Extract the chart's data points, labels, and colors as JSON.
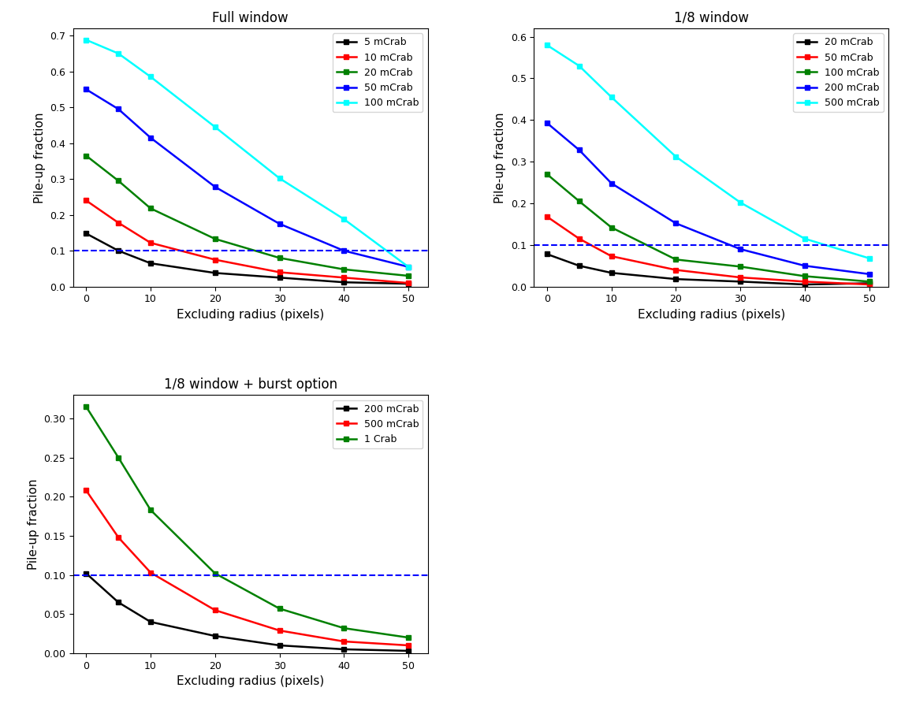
{
  "x": [
    0,
    5,
    10,
    20,
    30,
    40,
    50
  ],
  "xticks": [
    0,
    10,
    20,
    30,
    40,
    50
  ],
  "panel1": {
    "title": "Full window",
    "ylabel": "Pile-up fraction",
    "xlabel": "Excluding radius (pixels)",
    "ylim": [
      0,
      0.72
    ],
    "yticks": [
      0.0,
      0.1,
      0.2,
      0.3,
      0.4,
      0.5,
      0.6,
      0.7
    ],
    "series": [
      {
        "label": "5 mCrab",
        "color": "black",
        "data": [
          0.148,
          0.1,
          0.065,
          0.038,
          0.025,
          0.012,
          0.008
        ]
      },
      {
        "label": "10 mCrab",
        "color": "red",
        "data": [
          0.24,
          0.178,
          0.122,
          0.075,
          0.04,
          0.025,
          0.01
        ]
      },
      {
        "label": "20 mCrab",
        "color": "green",
        "data": [
          0.365,
          0.295,
          0.218,
          0.133,
          0.08,
          0.048,
          0.03
        ]
      },
      {
        "label": "50 mCrab",
        "color": "blue",
        "data": [
          0.55,
          0.495,
          0.415,
          0.278,
          0.175,
          0.1,
          0.055
        ]
      },
      {
        "label": "100 mCrab",
        "color": "cyan",
        "data": [
          0.688,
          0.65,
          0.585,
          0.445,
          0.302,
          0.188,
          0.055
        ]
      }
    ]
  },
  "panel2": {
    "title": "1/8 window",
    "ylabel": "Pile-up fraction",
    "xlabel": "Excluding radius (pixels)",
    "ylim": [
      0,
      0.62
    ],
    "yticks": [
      0.0,
      0.1,
      0.2,
      0.3,
      0.4,
      0.5,
      0.6
    ],
    "series": [
      {
        "label": "20 mCrab",
        "color": "black",
        "data": [
          0.078,
          0.05,
          0.033,
          0.018,
          0.012,
          0.005,
          0.008
        ]
      },
      {
        "label": "50 mCrab",
        "color": "red",
        "data": [
          0.168,
          0.115,
          0.073,
          0.04,
          0.022,
          0.012,
          0.005
        ]
      },
      {
        "label": "100 mCrab",
        "color": "green",
        "data": [
          0.27,
          0.205,
          0.142,
          0.065,
          0.048,
          0.025,
          0.012
        ]
      },
      {
        "label": "200 mCrab",
        "color": "blue",
        "data": [
          0.393,
          0.328,
          0.248,
          0.152,
          0.09,
          0.05,
          0.03
        ]
      },
      {
        "label": "500 mCrab",
        "color": "cyan",
        "data": [
          0.58,
          0.53,
          0.455,
          0.312,
          0.202,
          0.115,
          0.068
        ]
      }
    ]
  },
  "panel3": {
    "title": "1/8 window + burst option",
    "ylabel": "Pile-up fraction",
    "xlabel": "Excluding radius (pixels)",
    "ylim": [
      0,
      0.33
    ],
    "yticks": [
      0.0,
      0.05,
      0.1,
      0.15,
      0.2,
      0.25,
      0.3
    ],
    "series": [
      {
        "label": "200 mCrab",
        "color": "black",
        "data": [
          0.102,
          0.065,
          0.04,
          0.022,
          0.01,
          0.005,
          0.003
        ]
      },
      {
        "label": "500 mCrab",
        "color": "red",
        "data": [
          0.208,
          0.148,
          0.103,
          0.055,
          0.029,
          0.015,
          0.01
        ]
      },
      {
        "label": "1 Crab",
        "color": "green",
        "data": [
          0.315,
          0.25,
          0.183,
          0.102,
          0.057,
          0.032,
          0.02
        ]
      }
    ]
  },
  "dashed_line_y": 0.1,
  "dashed_line_color": "blue",
  "marker": "s",
  "markersize": 5,
  "linewidth": 1.8
}
